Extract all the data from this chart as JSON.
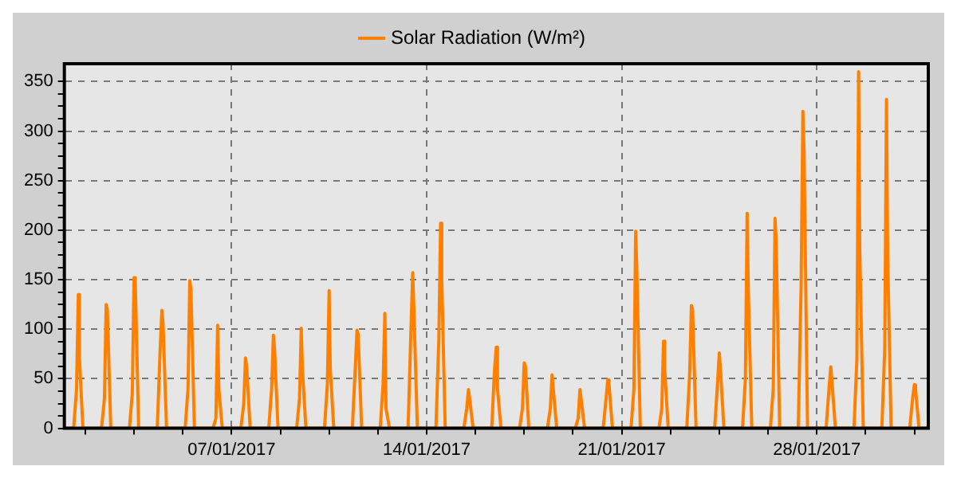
{
  "chart_data": {
    "type": "line",
    "legend": "top",
    "grid": true,
    "xlim": [
      "2017-01-01T00:00",
      "2017-02-01T00:00"
    ],
    "xticks": [
      {
        "value": "2017-01-01T18:00",
        "label": null
      },
      {
        "value": "2017-01-03T12:00",
        "label": null
      },
      {
        "value": "2017-01-05T06:00",
        "label": null
      },
      {
        "value": "2017-01-07",
        "label": "07/01/2017"
      },
      {
        "value": "2017-01-08T18:00",
        "label": null
      },
      {
        "value": "2017-01-10T12:00",
        "label": null
      },
      {
        "value": "2017-01-12T06:00",
        "label": null
      },
      {
        "value": "2017-01-14",
        "label": "14/01/2017"
      },
      {
        "value": "2017-01-15T18:00",
        "label": null
      },
      {
        "value": "2017-01-17T12:00",
        "label": null
      },
      {
        "value": "2017-01-19T06:00",
        "label": null
      },
      {
        "value": "2017-01-21",
        "label": "21/01/2017"
      },
      {
        "value": "2017-01-22T18:00",
        "label": null
      },
      {
        "value": "2017-01-24T12:00",
        "label": null
      },
      {
        "value": "2017-01-26T06:00",
        "label": null
      },
      {
        "value": "2017-01-28",
        "label": "28/01/2017"
      },
      {
        "value": "2017-01-29T18:00",
        "label": null
      },
      {
        "value": "2017-01-31T12:00",
        "label": null
      }
    ],
    "ylim": [
      0,
      368
    ],
    "yticks": [
      0,
      {
        "value": 12.5,
        "label": null
      },
      {
        "value": 25,
        "label": null
      },
      {
        "value": 37.5,
        "label": null
      },
      50,
      {
        "value": 62.5,
        "label": null
      },
      {
        "value": 75,
        "label": null
      },
      {
        "value": 87.5,
        "label": null
      },
      100,
      {
        "value": 112.5,
        "label": null
      },
      {
        "value": 125,
        "label": null
      },
      {
        "value": 137.5,
        "label": null
      },
      150,
      {
        "value": 162.5,
        "label": null
      },
      {
        "value": 175,
        "label": null
      },
      {
        "value": 187.5,
        "label": null
      },
      200,
      {
        "value": 212.5,
        "label": null
      },
      {
        "value": 225,
        "label": null
      },
      {
        "value": 237.5,
        "label": null
      },
      250,
      {
        "value": 262.5,
        "label": null
      },
      {
        "value": 275,
        "label": null
      },
      {
        "value": 287.5,
        "label": null
      },
      300,
      {
        "value": 312.5,
        "label": null
      },
      {
        "value": 325,
        "label": null
      },
      {
        "value": 337.5,
        "label": null
      },
      350
    ],
    "series": [
      {
        "name": "Solar Radiation (W/m²)",
        "color": "#ff8000",
        "x": [
          "2017-01-01T00:00",
          "2017-01-01T08:00",
          "2017-01-01T10:30",
          "2017-01-01T12:00",
          "2017-01-01T13:00",
          "2017-01-01T16:00",
          "2017-01-02T08:00",
          "2017-01-02T10:30",
          "2017-01-02T12:00",
          "2017-01-02T13:00",
          "2017-01-02T16:00",
          "2017-01-03T08:00",
          "2017-01-03T10:30",
          "2017-01-03T12:00",
          "2017-01-03T13:00",
          "2017-01-03T16:00",
          "2017-01-04T08:00",
          "2017-01-04T10:30",
          "2017-01-04T12:00",
          "2017-01-04T13:00",
          "2017-01-04T16:00",
          "2017-01-05T08:00",
          "2017-01-05T10:30",
          "2017-01-05T12:00",
          "2017-01-05T13:00",
          "2017-01-05T16:00",
          "2017-01-06T08:00",
          "2017-01-06T10:30",
          "2017-01-06T12:00",
          "2017-01-06T13:00",
          "2017-01-06T16:00",
          "2017-01-07T08:00",
          "2017-01-07T10:30",
          "2017-01-07T12:00",
          "2017-01-07T13:00",
          "2017-01-07T16:00",
          "2017-01-08T08:00",
          "2017-01-08T10:30",
          "2017-01-08T12:00",
          "2017-01-08T13:00",
          "2017-01-08T16:00",
          "2017-01-09T08:00",
          "2017-01-09T10:30",
          "2017-01-09T12:00",
          "2017-01-09T13:00",
          "2017-01-09T16:00",
          "2017-01-10T08:00",
          "2017-01-10T10:30",
          "2017-01-10T12:00",
          "2017-01-10T13:00",
          "2017-01-10T16:00",
          "2017-01-11T08:00",
          "2017-01-11T10:30",
          "2017-01-11T12:00",
          "2017-01-11T13:00",
          "2017-01-11T16:00",
          "2017-01-12T08:00",
          "2017-01-12T10:30",
          "2017-01-12T12:00",
          "2017-01-12T13:00",
          "2017-01-12T16:00",
          "2017-01-13T08:00",
          "2017-01-13T10:30",
          "2017-01-13T12:00",
          "2017-01-13T13:00",
          "2017-01-13T16:00",
          "2017-01-14T08:00",
          "2017-01-14T10:30",
          "2017-01-14T12:00",
          "2017-01-14T13:00",
          "2017-01-14T16:00",
          "2017-01-15T08:00",
          "2017-01-15T10:30",
          "2017-01-15T12:00",
          "2017-01-15T13:00",
          "2017-01-15T16:00",
          "2017-01-16T08:00",
          "2017-01-16T10:30",
          "2017-01-16T12:00",
          "2017-01-16T13:00",
          "2017-01-16T16:00",
          "2017-01-17T08:00",
          "2017-01-17T10:30",
          "2017-01-17T12:00",
          "2017-01-17T13:00",
          "2017-01-17T16:00",
          "2017-01-18T08:00",
          "2017-01-18T10:30",
          "2017-01-18T12:00",
          "2017-01-18T13:00",
          "2017-01-18T16:00",
          "2017-01-19T08:00",
          "2017-01-19T10:30",
          "2017-01-19T12:00",
          "2017-01-19T13:00",
          "2017-01-19T16:00",
          "2017-01-20T08:00",
          "2017-01-20T10:30",
          "2017-01-20T12:00",
          "2017-01-20T13:00",
          "2017-01-20T16:00",
          "2017-01-21T08:00",
          "2017-01-21T10:30",
          "2017-01-21T12:00",
          "2017-01-21T13:00",
          "2017-01-21T16:00",
          "2017-01-22T08:00",
          "2017-01-22T10:30",
          "2017-01-22T12:00",
          "2017-01-22T13:00",
          "2017-01-22T16:00",
          "2017-01-23T08:00",
          "2017-01-23T10:30",
          "2017-01-23T12:00",
          "2017-01-23T13:00",
          "2017-01-23T16:00",
          "2017-01-24T08:00",
          "2017-01-24T10:30",
          "2017-01-24T12:00",
          "2017-01-24T13:00",
          "2017-01-24T16:00",
          "2017-01-25T08:00",
          "2017-01-25T10:30",
          "2017-01-25T12:00",
          "2017-01-25T13:00",
          "2017-01-25T16:00",
          "2017-01-26T08:00",
          "2017-01-26T10:30",
          "2017-01-26T12:00",
          "2017-01-26T13:00",
          "2017-01-26T16:00",
          "2017-01-27T08:00",
          "2017-01-27T10:30",
          "2017-01-27T12:00",
          "2017-01-27T13:00",
          "2017-01-27T16:00",
          "2017-01-28T08:00",
          "2017-01-28T10:30",
          "2017-01-28T12:00",
          "2017-01-28T13:00",
          "2017-01-28T16:00",
          "2017-01-29T08:00",
          "2017-01-29T10:30",
          "2017-01-29T12:00",
          "2017-01-29T13:00",
          "2017-01-29T16:00",
          "2017-01-30T08:00",
          "2017-01-30T10:30",
          "2017-01-30T12:00",
          "2017-01-30T13:00",
          "2017-01-30T16:00",
          "2017-01-31T08:00",
          "2017-01-31T10:30",
          "2017-01-31T12:00",
          "2017-01-31T13:00",
          "2017-01-31T16:00",
          "2017-02-01T00:00"
        ],
        "values": [
          0,
          0,
          40,
          135,
          70,
          0,
          0,
          30,
          125,
          120,
          0,
          0,
          35,
          152,
          150,
          0,
          0,
          80,
          119,
          105,
          0,
          0,
          40,
          149,
          140,
          0,
          0,
          10,
          104,
          40,
          0,
          0,
          25,
          71,
          62,
          0,
          0,
          40,
          94,
          80,
          0,
          0,
          30,
          101,
          60,
          0,
          0,
          45,
          139,
          60,
          0,
          0,
          60,
          99,
          95,
          0,
          0,
          45,
          116,
          20,
          0,
          0,
          100,
          157,
          120,
          0,
          0,
          90,
          207,
          150,
          0,
          0,
          20,
          39,
          30,
          0,
          0,
          60,
          82,
          40,
          0,
          0,
          20,
          66,
          63,
          0,
          0,
          20,
          54,
          54,
          0,
          0,
          10,
          39,
          30,
          0,
          0,
          30,
          49,
          45,
          0,
          0,
          40,
          199,
          160,
          0,
          0,
          20,
          88,
          60,
          0,
          0,
          55,
          124,
          120,
          0,
          0,
          45,
          76,
          60,
          0,
          0,
          50,
          217,
          140,
          0,
          0,
          40,
          212,
          190,
          0,
          0,
          145,
          320,
          280,
          0,
          0,
          40,
          62,
          48,
          0,
          0,
          70,
          360,
          180,
          0,
          0,
          80,
          332,
          175,
          0,
          0,
          30,
          44,
          40,
          0,
          0
        ]
      }
    ]
  }
}
